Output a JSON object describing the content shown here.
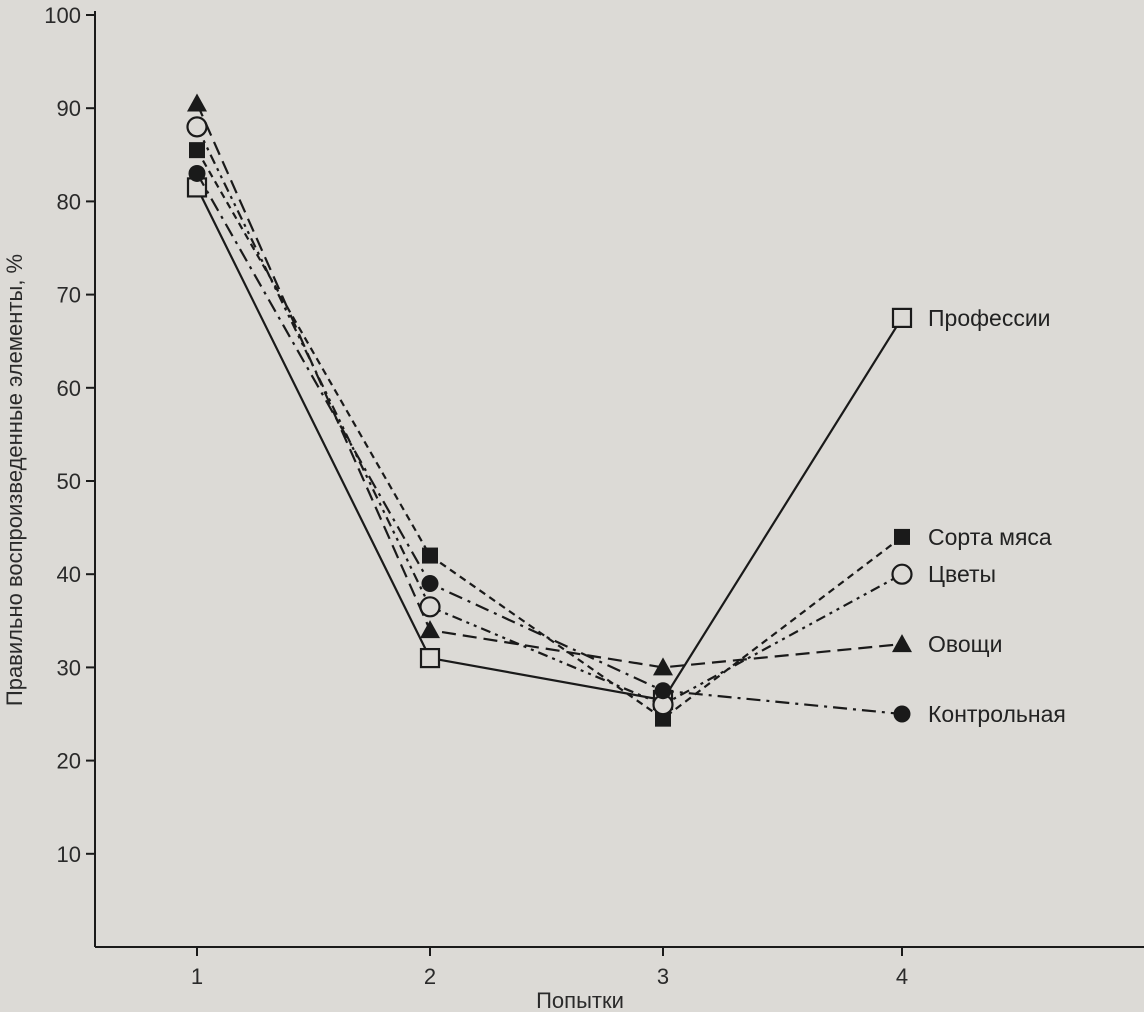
{
  "chart_data": {
    "type": "line",
    "title": "",
    "xlabel": "Попытки",
    "ylabel": "Правильно воспроизведенные элементы, %",
    "x": [
      1,
      2,
      3,
      4
    ],
    "x_tick_labels": [
      "1",
      "2",
      "3",
      "4"
    ],
    "ylim": [
      0,
      100
    ],
    "y_ticks": [
      10,
      20,
      30,
      40,
      50,
      60,
      70,
      80,
      90,
      100
    ],
    "y_tick_labels": [
      "10",
      "20",
      "30",
      "40",
      "50",
      "60",
      "70",
      "80",
      "90",
      "100"
    ],
    "grid": false,
    "legend": "labels at line ends (right)",
    "series": [
      {
        "name": "Профессии",
        "values": [
          81.5,
          31,
          26.5,
          67.5
        ],
        "marker": "open-square",
        "line": "solid"
      },
      {
        "name": "Сорта мяса",
        "values": [
          85.5,
          42,
          24.5,
          44
        ],
        "marker": "filled-square",
        "line": "short-dash"
      },
      {
        "name": "Цветы",
        "values": [
          88,
          36.5,
          26,
          40
        ],
        "marker": "open-circle",
        "line": "dash-dot-dot"
      },
      {
        "name": "Овощи",
        "values": [
          90.5,
          34,
          30,
          32.5
        ],
        "marker": "filled-triangle",
        "line": "long-dash"
      },
      {
        "name": "Контрольная",
        "values": [
          83,
          39,
          27.5,
          25
        ],
        "marker": "filled-circle",
        "line": "dash-dot"
      }
    ],
    "colors": {
      "line": "#1a1a1a",
      "background": "#dcdad6"
    }
  }
}
